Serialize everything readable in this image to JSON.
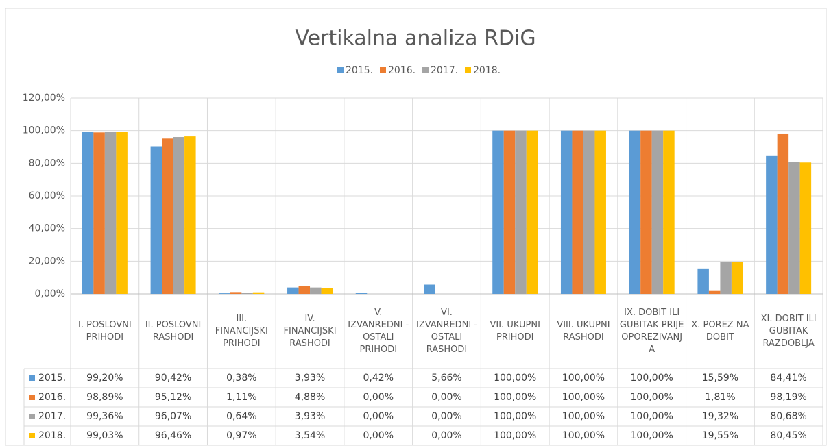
{
  "chart_data": {
    "type": "bar",
    "title": "Vertikalna analiza RDiG",
    "legend": "top",
    "grid": true,
    "categories": [
      "I. POSLOVNI PRIHODI",
      "II. POSLOVNI RASHODI",
      "III. FINANCIJSKI PRIHODI",
      "IV. FINANCIJSKI RASHODI",
      "V. IZVANREDNI - OSTALI PRIHODI",
      "VI. IZVANREDNI - OSTALI RASHODI",
      "VII. UKUPNI PRIHODI",
      "VIII. UKUPNI RASHODI",
      "IX. DOBIT ILI GUBITAK PRIJE OPOREZIVANJA",
      "X. POREZ NA DOBIT",
      "XI. DOBIT ILI GUBITAK RAZDOBLJA"
    ],
    "series": [
      {
        "name": "2015.",
        "color": "#5b9bd5",
        "values": [
          99.2,
          90.42,
          0.38,
          3.93,
          0.42,
          5.66,
          100,
          100,
          100,
          15.59,
          84.41
        ],
        "value_labels": [
          "99,20%",
          "90,42%",
          "0,38%",
          "3,93%",
          "0,42%",
          "5,66%",
          "100,00%",
          "100,00%",
          "100,00%",
          "15,59%",
          "84,41%"
        ]
      },
      {
        "name": "2016.",
        "color": "#ed7d31",
        "values": [
          98.89,
          95.12,
          1.11,
          4.88,
          0,
          0,
          100,
          100,
          100,
          1.81,
          98.19
        ],
        "value_labels": [
          "98,89%",
          "95,12%",
          "1,11%",
          "4,88%",
          "0,00%",
          "0,00%",
          "100,00%",
          "100,00%",
          "100,00%",
          "1,81%",
          "98,19%"
        ]
      },
      {
        "name": "2017.",
        "color": "#a5a5a5",
        "values": [
          99.36,
          96.07,
          0.64,
          3.93,
          0,
          0,
          100,
          100,
          100,
          19.32,
          80.68
        ],
        "value_labels": [
          "99,36%",
          "96,07%",
          "0,64%",
          "3,93%",
          "0,00%",
          "0,00%",
          "100,00%",
          "100,00%",
          "100,00%",
          "19,32%",
          "80,68%"
        ]
      },
      {
        "name": "2018.",
        "color": "#ffc000",
        "values": [
          99.03,
          96.46,
          0.97,
          3.54,
          0,
          0,
          100,
          100,
          100,
          19.55,
          80.45
        ],
        "value_labels": [
          "99,03%",
          "96,46%",
          "0,97%",
          "3,54%",
          "0,00%",
          "0,00%",
          "100,00%",
          "100,00%",
          "100,00%",
          "19,55%",
          "80,45%"
        ]
      }
    ],
    "ylim": [
      0,
      120
    ],
    "yticks": [
      {
        "value": 0,
        "label": "0,00%"
      },
      {
        "value": 20,
        "label": "20,00%"
      },
      {
        "value": 40,
        "label": "40,00%"
      },
      {
        "value": 60,
        "label": "60,00%"
      },
      {
        "value": 80,
        "label": "80,00%"
      },
      {
        "value": 100,
        "label": "100,00%"
      },
      {
        "value": 120,
        "label": "120,00%"
      }
    ]
  }
}
